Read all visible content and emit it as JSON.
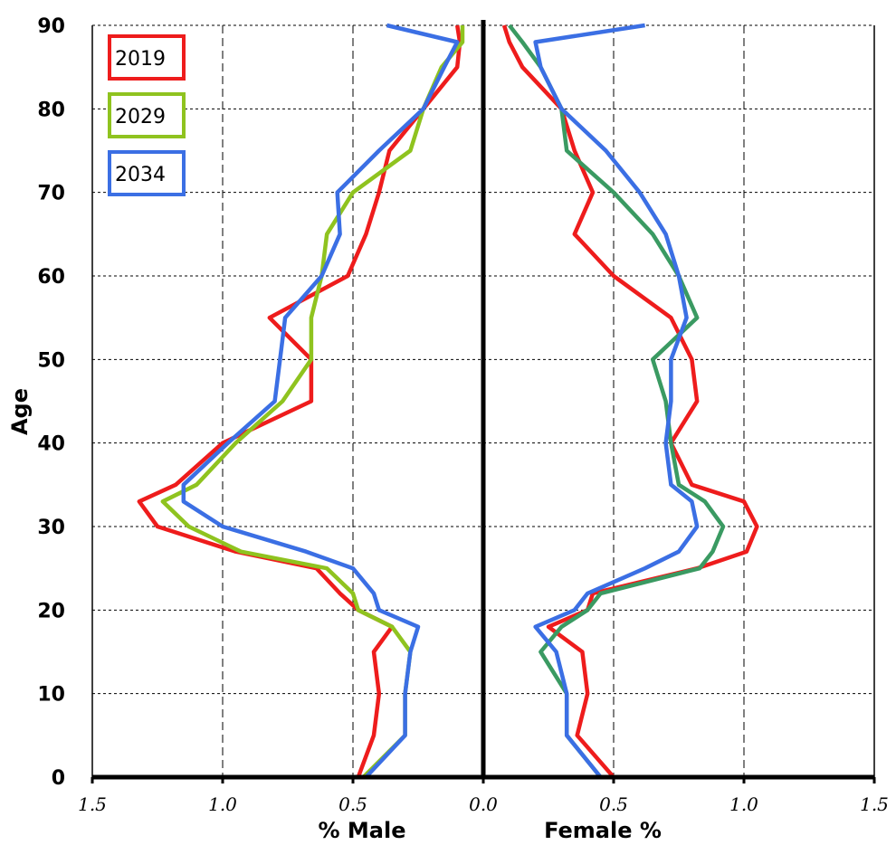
{
  "chart_data": {
    "type": "line",
    "title": "",
    "ylabel": "Age",
    "xlabel_left": "% Male",
    "xlabel_right": "Female %",
    "xlim": [
      -1.5,
      1.5
    ],
    "ylim": [
      0,
      90
    ],
    "x_ticks": [
      {
        "value": -1.5,
        "label": "1.5"
      },
      {
        "value": -1.0,
        "label": "1.0"
      },
      {
        "value": -0.5,
        "label": "0.5"
      },
      {
        "value": 0.0,
        "label": "0.0"
      },
      {
        "value": 0.5,
        "label": "0.5"
      },
      {
        "value": 1.0,
        "label": "1.0"
      },
      {
        "value": 1.5,
        "label": "1.5"
      }
    ],
    "y_ticks": [
      0,
      10,
      20,
      30,
      40,
      50,
      60,
      70,
      80,
      90
    ],
    "grid": true,
    "legend_position": "top-left",
    "ages": [
      0,
      5,
      10,
      15,
      18,
      20,
      22,
      25,
      27,
      30,
      33,
      35,
      40,
      45,
      50,
      55,
      60,
      65,
      70,
      75,
      80,
      85,
      88,
      90
    ],
    "series": [
      {
        "name": "2019",
        "color": "#ee1c1c",
        "male": [
          0.48,
          0.42,
          0.4,
          0.42,
          0.35,
          0.48,
          0.55,
          0.64,
          0.95,
          1.25,
          1.32,
          1.18,
          1.0,
          0.66,
          0.66,
          0.82,
          0.52,
          0.45,
          0.4,
          0.36,
          0.23,
          0.1,
          0.09,
          0.1
        ],
        "female": [
          0.5,
          0.36,
          0.4,
          0.38,
          0.25,
          0.4,
          0.42,
          0.82,
          1.01,
          1.05,
          1.0,
          0.8,
          0.72,
          0.82,
          0.8,
          0.72,
          0.5,
          0.35,
          0.42,
          0.35,
          0.3,
          0.15,
          0.1,
          0.08
        ]
      },
      {
        "name": "2029",
        "color": "#8fc31f",
        "female_color": "#3a9a62",
        "male": [
          0.46,
          0.3,
          0.3,
          0.28,
          0.35,
          0.48,
          0.5,
          0.6,
          0.93,
          1.13,
          1.23,
          1.1,
          0.95,
          0.77,
          0.66,
          0.66,
          0.62,
          0.6,
          0.5,
          0.28,
          0.23,
          0.16,
          0.08,
          0.08
        ],
        "female": [
          0.45,
          0.32,
          0.32,
          0.22,
          0.3,
          0.4,
          0.45,
          0.83,
          0.88,
          0.92,
          0.85,
          0.75,
          0.72,
          0.7,
          0.65,
          0.82,
          0.75,
          0.65,
          0.5,
          0.32,
          0.3,
          0.22,
          0.15,
          0.1
        ]
      },
      {
        "name": "2034",
        "color": "#3b6fe4",
        "male": [
          0.45,
          0.3,
          0.3,
          0.28,
          0.25,
          0.4,
          0.42,
          0.5,
          0.68,
          1.0,
          1.15,
          1.15,
          0.98,
          0.8,
          0.78,
          0.76,
          0.62,
          0.55,
          0.56,
          0.4,
          0.23,
          0.15,
          0.1,
          0.37
        ],
        "female": [
          0.45,
          0.32,
          0.32,
          0.28,
          0.2,
          0.35,
          0.4,
          0.62,
          0.75,
          0.82,
          0.8,
          0.72,
          0.7,
          0.72,
          0.72,
          0.78,
          0.75,
          0.7,
          0.6,
          0.47,
          0.3,
          0.22,
          0.2,
          0.62
        ]
      }
    ]
  }
}
